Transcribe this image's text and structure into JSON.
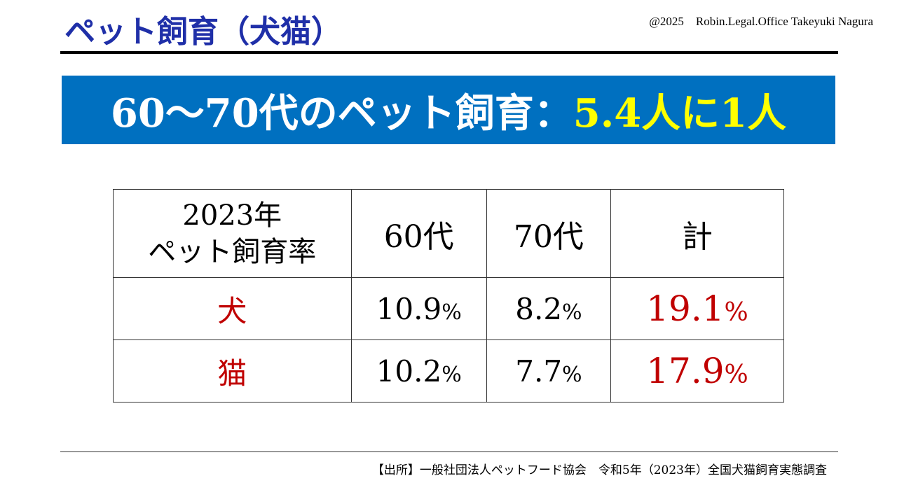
{
  "header": {
    "title": "ペット飼育（犬猫）",
    "copyright": "@2025　Robin.Legal.Office Takeyuki Nagura"
  },
  "banner": {
    "main": "60〜70代のペット飼育：",
    "accent": "5.4人に1人",
    "bg_color": "#0070c0",
    "accent_color": "#ffff00"
  },
  "table": {
    "corner_line1": "2023年",
    "corner_line2": "ペット飼育率",
    "headers": [
      "60代",
      "70代",
      "計"
    ],
    "percent_sign": "%",
    "rows": [
      {
        "label": "犬",
        "v60": "10.9",
        "v70": "8.2",
        "total": "19.1"
      },
      {
        "label": "猫",
        "v60": "10.2",
        "v70": "7.7",
        "total": "17.9"
      }
    ],
    "highlight_color": "#c00000"
  },
  "footer": {
    "source": "【出所】一般社団法人ペットフード協会　令和5年（2023年）全国犬猫飼育実態調査"
  }
}
